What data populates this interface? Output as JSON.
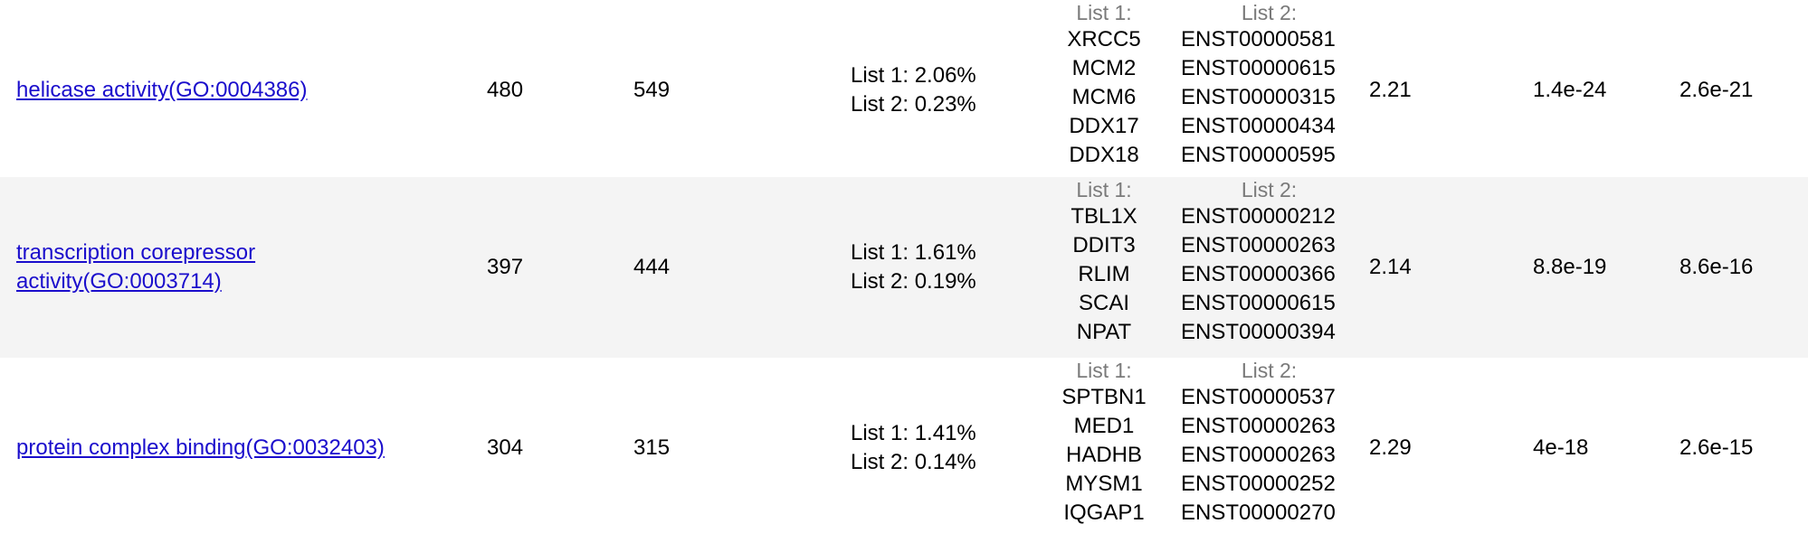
{
  "rows": [
    {
      "term": "helicase activity(GO:0004386)",
      "count_list1": "480",
      "count_list2": "549",
      "pct_list1": "List 1: 2.06%",
      "pct_list2": "List 2: 0.23%",
      "list1_header": "List 1:",
      "list2_header": "List 2:",
      "genes_list1": [
        "XRCC5",
        "MCM2",
        "MCM6",
        "DDX17",
        "DDX18"
      ],
      "genes_list2": [
        "ENST00000581",
        "ENST00000615",
        "ENST00000315",
        "ENST00000434",
        "ENST00000595"
      ],
      "fold": "2.21",
      "pvalue": "1.4e-24",
      "fdr": "2.6e-21"
    },
    {
      "term": "transcription corepressor activity(GO:0003714)",
      "count_list1": "397",
      "count_list2": "444",
      "pct_list1": "List 1: 1.61%",
      "pct_list2": "List 2: 0.19%",
      "list1_header": "List 1:",
      "list2_header": "List 2:",
      "genes_list1": [
        "TBL1X",
        "DDIT3",
        "RLIM",
        "SCAI",
        "NPAT"
      ],
      "genes_list2": [
        "ENST00000212",
        "ENST00000263",
        "ENST00000366",
        "ENST00000615",
        "ENST00000394"
      ],
      "fold": "2.14",
      "pvalue": "8.8e-19",
      "fdr": "8.6e-16"
    },
    {
      "term": "protein complex binding(GO:0032403)",
      "count_list1": "304",
      "count_list2": "315",
      "pct_list1": "List 1: 1.41%",
      "pct_list2": "List 2: 0.14%",
      "list1_header": "List 1:",
      "list2_header": "List 2:",
      "genes_list1": [
        "SPTBN1",
        "MED1",
        "HADHB",
        "MYSM1",
        "IQGAP1"
      ],
      "genes_list2": [
        "ENST00000537",
        "ENST00000263",
        "ENST00000263",
        "ENST00000252",
        "ENST00000270"
      ],
      "fold": "2.29",
      "pvalue": "4e-18",
      "fdr": "2.6e-15"
    }
  ]
}
